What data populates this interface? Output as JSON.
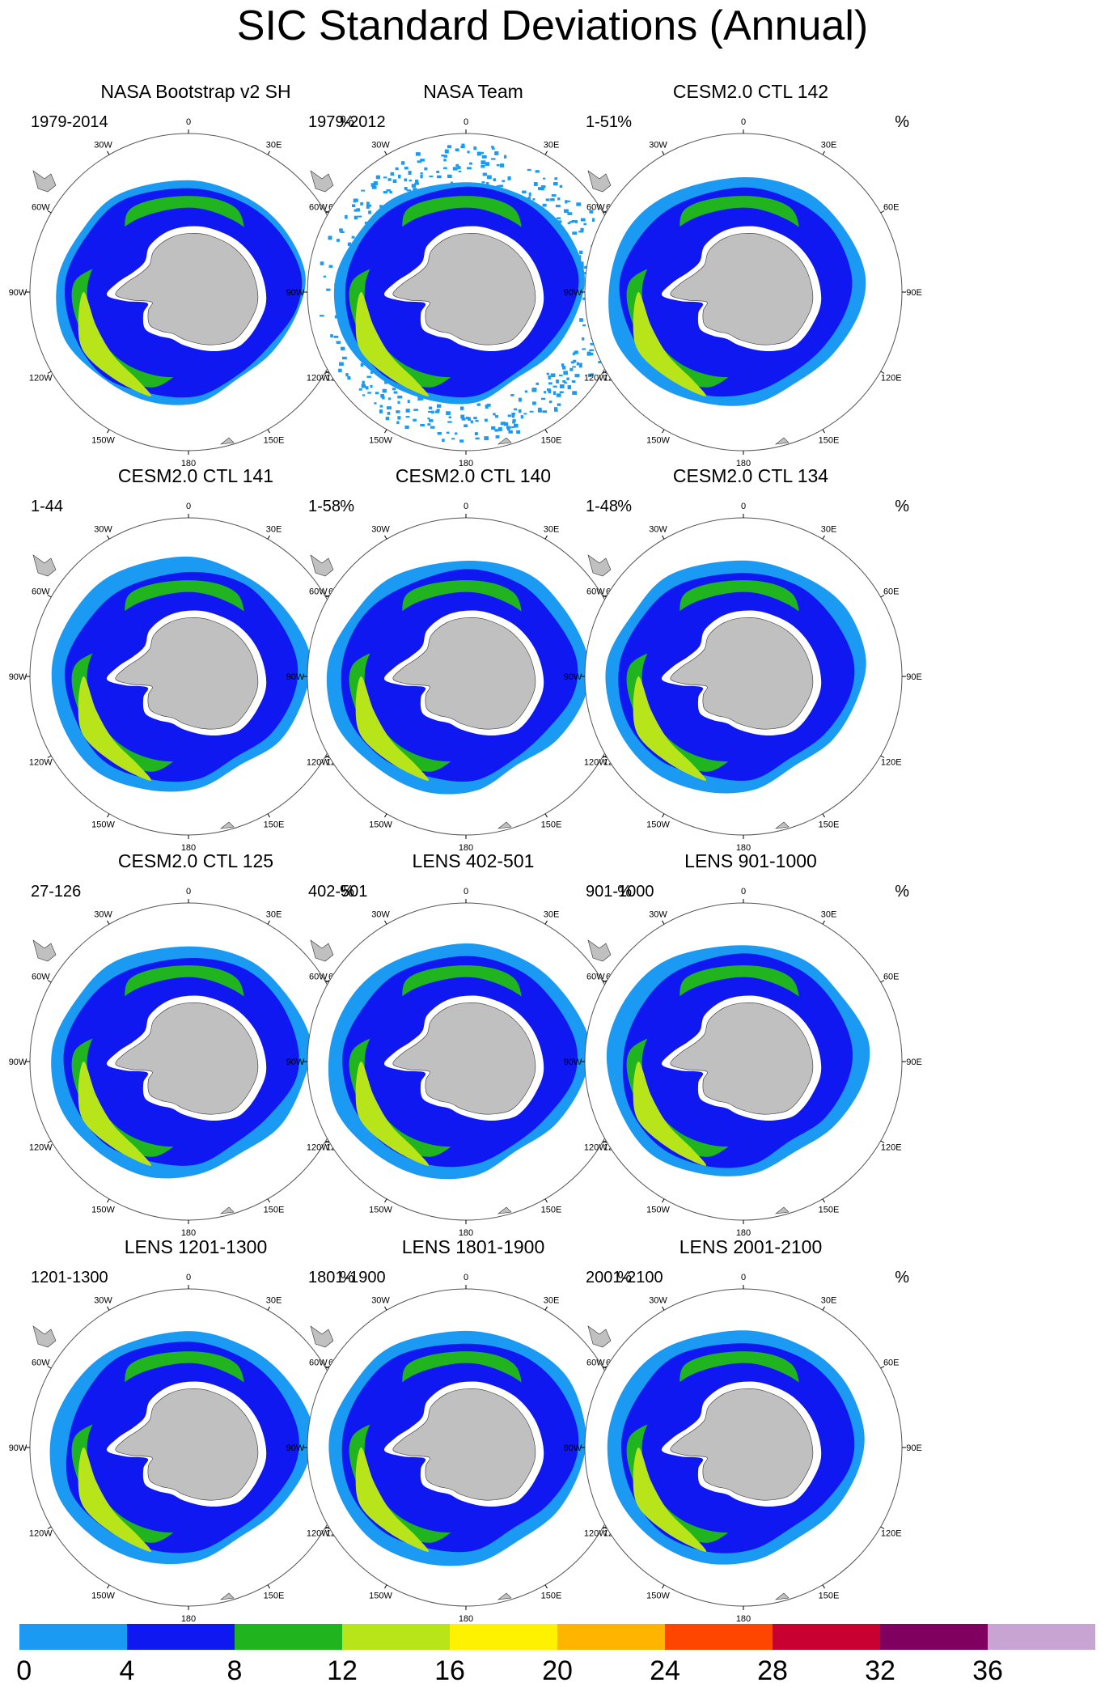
{
  "title": "SIC Standard Deviations (Annual)",
  "units_label": "%",
  "grid_labels": {
    "lon_0": "0",
    "lon_30e": "30E",
    "lon_60e": "60E",
    "lon_90e": "90E",
    "lon_120e": "120E",
    "lon_150e": "150E",
    "lon_180": "180",
    "lon_150w": "150W",
    "lon_120w": "120W",
    "lon_90w": "90W",
    "lon_60w": "60W",
    "lon_30w": "30W"
  },
  "panels": [
    {
      "title": "NASA Bootstrap v2 SH",
      "period": "1979-2014",
      "style": "obs",
      "speckle": false
    },
    {
      "title": "NASA Team",
      "period": "1979-2012",
      "style": "obs",
      "speckle": true
    },
    {
      "title": "CESM2.0 CTL 142",
      "period": "1-51",
      "style": "model",
      "speckle": false
    },
    {
      "title": "CESM2.0 CTL 141",
      "period": "1-44",
      "style": "model",
      "speckle": false
    },
    {
      "title": "CESM2.0 CTL 140",
      "period": "1-58",
      "style": "model",
      "speckle": false
    },
    {
      "title": "CESM2.0 CTL 134",
      "period": "1-48",
      "style": "model",
      "speckle": false
    },
    {
      "title": "CESM2.0 CTL 125",
      "period": "27-126",
      "style": "model",
      "speckle": false
    },
    {
      "title": "LENS 402-501",
      "period": "402-501",
      "style": "model",
      "speckle": false
    },
    {
      "title": "LENS 901-1000",
      "period": "901-1000",
      "style": "model",
      "speckle": false
    },
    {
      "title": "LENS 1201-1300",
      "period": "1201-1300",
      "style": "model",
      "speckle": false
    },
    {
      "title": "LENS 1801-1900",
      "period": "1801-1900",
      "style": "model",
      "speckle": false
    },
    {
      "title": "LENS 2001-2100",
      "period": "2001-2100",
      "style": "model",
      "speckle": false
    }
  ],
  "colorbar": {
    "colors": [
      "#1a9af2",
      "#0f18f0",
      "#20b41e",
      "#b8e41a",
      "#fff200",
      "#ffb400",
      "#ff4600",
      "#c80032",
      "#800060",
      "#c8a4d2"
    ],
    "labels": [
      "0",
      "4",
      "8",
      "12",
      "16",
      "20",
      "24",
      "28",
      "32",
      "36"
    ]
  },
  "land_color": "#c0c0c0"
}
